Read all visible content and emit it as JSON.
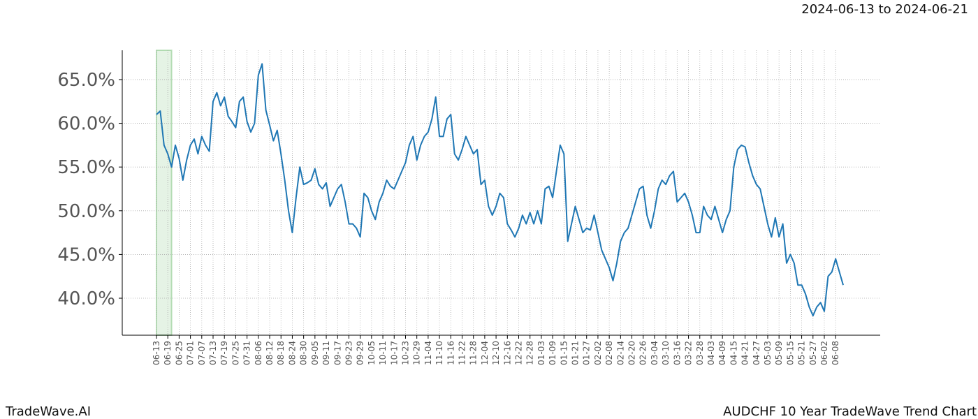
{
  "chart_data": {
    "type": "line",
    "title": "AUDCHF 10 Year TradeWave Trend Chart",
    "subtitle": "2024-06-13 to 2024-06-21",
    "watermark": "TradeWave.AI",
    "categories": [
      "06-13",
      null,
      null,
      "06-19",
      null,
      null,
      "06-25",
      null,
      null,
      "07-01",
      null,
      null,
      "07-07",
      null,
      null,
      "07-13",
      null,
      null,
      "07-19",
      null,
      null,
      "07-25",
      null,
      null,
      "07-31",
      null,
      null,
      "08-06",
      null,
      null,
      "08-12",
      null,
      null,
      "08-18",
      null,
      null,
      "08-24",
      null,
      null,
      "08-30",
      null,
      null,
      "09-05",
      null,
      null,
      "09-11",
      null,
      null,
      "09-17",
      null,
      null,
      "09-23",
      null,
      null,
      "09-29",
      null,
      null,
      "10-05",
      null,
      null,
      "10-11",
      null,
      null,
      "10-17",
      null,
      null,
      "10-23",
      null,
      null,
      "10-29",
      null,
      null,
      "11-04",
      null,
      null,
      "11-10",
      null,
      null,
      "11-16",
      null,
      null,
      "11-22",
      null,
      null,
      "11-28",
      null,
      null,
      "12-04",
      null,
      null,
      "12-10",
      null,
      null,
      "12-16",
      null,
      null,
      "12-22",
      null,
      null,
      "12-28",
      null,
      null,
      "01-03",
      null,
      null,
      "01-09",
      null,
      null,
      "01-15",
      null,
      null,
      "01-21",
      null,
      null,
      "01-27",
      null,
      null,
      "02-02",
      null,
      null,
      "02-08",
      null,
      null,
      "02-14",
      null,
      null,
      "02-20",
      null,
      null,
      "02-26",
      null,
      null,
      "03-04",
      null,
      null,
      "03-10",
      null,
      null,
      "03-16",
      null,
      null,
      "03-22",
      null,
      null,
      "03-28",
      null,
      null,
      "04-03",
      null,
      null,
      "04-09",
      null,
      null,
      "04-15",
      null,
      null,
      "04-21",
      null,
      null,
      "04-27",
      null,
      null,
      "05-03",
      null,
      null,
      "05-09",
      null,
      null,
      "05-15",
      null,
      null,
      "05-21",
      null,
      null,
      "05-27",
      null,
      null,
      "06-02",
      null,
      null,
      "06-08",
      null,
      null
    ],
    "values": [
      61.0,
      61.4,
      57.5,
      56.5,
      55.0,
      57.5,
      56.0,
      53.5,
      55.8,
      57.5,
      58.2,
      56.5,
      58.5,
      57.5,
      56.8,
      62.5,
      63.5,
      62.0,
      63.0,
      60.8,
      60.2,
      59.5,
      62.5,
      63.0,
      60.2,
      59.0,
      60.0,
      65.5,
      66.8,
      61.5,
      59.8,
      58.0,
      59.2,
      56.5,
      53.5,
      50.0,
      47.5,
      51.5,
      55.0,
      53.0,
      53.2,
      53.5,
      54.8,
      53.0,
      52.5,
      53.2,
      50.5,
      51.5,
      52.5,
      53.0,
      51.0,
      48.5,
      48.5,
      48.0,
      47.0,
      52.0,
      51.5,
      50.0,
      49.0,
      51.0,
      52.0,
      53.5,
      52.8,
      52.5,
      53.5,
      54.5,
      55.5,
      57.5,
      58.5,
      55.8,
      57.5,
      58.5,
      59.0,
      60.5,
      63.0,
      58.5,
      58.5,
      60.5,
      61.0,
      56.5,
      55.8,
      57.0,
      58.5,
      57.5,
      56.5,
      57.0,
      53.0,
      53.5,
      50.5,
      49.5,
      50.5,
      52.0,
      51.5,
      48.5,
      47.8,
      47.0,
      48.0,
      49.5,
      48.5,
      49.8,
      48.5,
      50.0,
      48.5,
      52.5,
      52.8,
      51.5,
      54.5,
      57.5,
      56.5,
      46.5,
      48.5,
      50.5,
      49.0,
      47.5,
      48.0,
      47.8,
      49.5,
      47.5,
      45.5,
      44.5,
      43.5,
      42.0,
      44.0,
      46.5,
      47.5,
      48.0,
      49.5,
      51.0,
      52.5,
      52.8,
      49.5,
      48.0,
      50.0,
      52.5,
      53.5,
      53.0,
      54.0,
      54.5,
      51.0,
      51.5,
      52.0,
      51.0,
      49.5,
      47.5,
      47.5,
      50.5,
      49.5,
      49.0,
      50.5,
      49.0,
      47.5,
      49.0,
      50.0,
      55.0,
      57.0,
      57.5,
      57.3,
      55.5,
      54.0,
      53.0,
      52.5,
      50.5,
      48.5,
      47.0,
      49.2,
      47.0,
      48.5,
      44.0,
      45.0,
      44.0,
      41.5,
      41.5,
      40.5,
      39.0,
      38.0,
      39.0,
      39.5,
      38.5,
      42.5,
      43.0,
      44.5,
      43.0,
      41.5
    ],
    "color": "#1f77b4",
    "highlight_index_range": [
      0,
      4
    ],
    "highlight_color": "#2ca02c",
    "ylim": [
      35.77,
      68.35
    ],
    "yticks": [
      {
        "value": 40,
        "label": "40.0%"
      },
      {
        "value": 45,
        "label": "45.0%"
      },
      {
        "value": 50,
        "label": "50.0%"
      },
      {
        "value": 55,
        "label": "55.0%"
      },
      {
        "value": 60,
        "label": "60.0%"
      },
      {
        "value": 65,
        "label": "65.0%"
      }
    ],
    "grid": true
  }
}
